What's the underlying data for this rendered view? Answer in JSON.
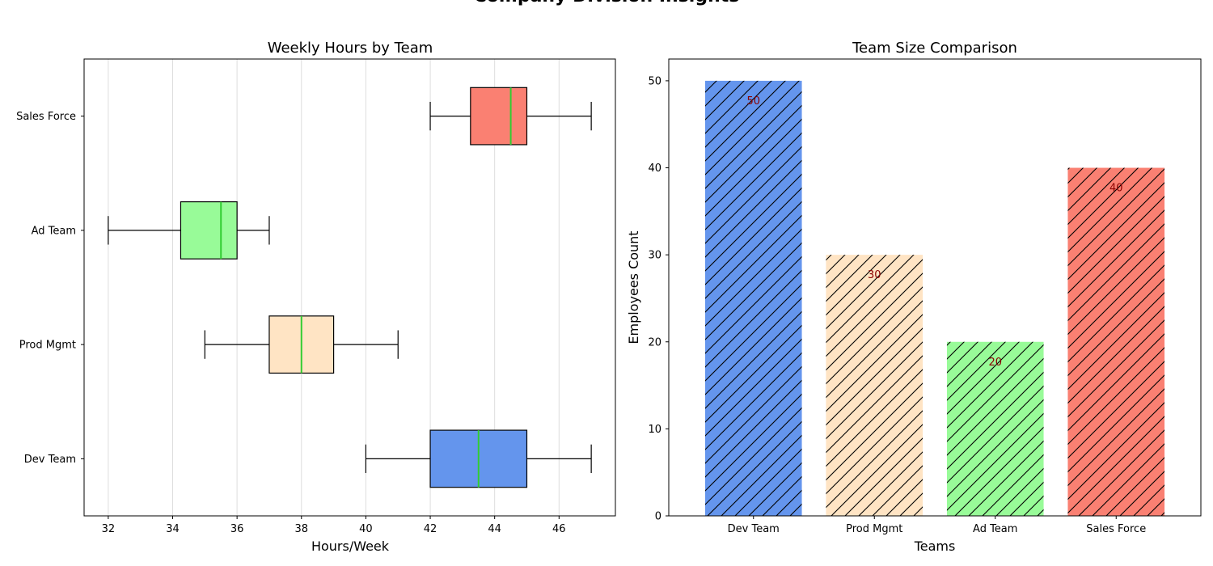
{
  "figure": {
    "title": "Company Division Insights"
  },
  "chart_data": [
    {
      "type": "box",
      "title": "Weekly Hours by Team",
      "xlabel": "Hours/Week",
      "ylabel": "",
      "orientation": "horizontal",
      "xlim": [
        31.25,
        47.75
      ],
      "xticks": [
        32,
        34,
        36,
        38,
        40,
        42,
        44,
        46
      ],
      "grid": "vertical",
      "categories": [
        "Dev Team",
        "Prod Mgmt",
        "Ad Team",
        "Sales Force"
      ],
      "boxes": [
        {
          "label": "Dev Team",
          "whisker_low": 40,
          "q1": 42,
          "median": 43.5,
          "q3": 45,
          "whisker_high": 47,
          "color": "#6495ed"
        },
        {
          "label": "Prod Mgmt",
          "whisker_low": 35,
          "q1": 37,
          "median": 38,
          "q3": 39,
          "whisker_high": 41,
          "color": "#ffe4c4"
        },
        {
          "label": "Ad Team",
          "whisker_low": 32,
          "q1": 34.25,
          "median": 35.5,
          "q3": 36,
          "whisker_high": 37,
          "color": "#98fb98"
        },
        {
          "label": "Sales Force",
          "whisker_low": 42,
          "q1": 43.25,
          "median": 44.5,
          "q3": 45,
          "whisker_high": 47,
          "color": "#fa8072"
        }
      ],
      "median_color": "#32cd32"
    },
    {
      "type": "bar",
      "title": "Team Size Comparison",
      "xlabel": "Teams",
      "ylabel": "Employees Count",
      "ylim": [
        0,
        52.5
      ],
      "yticks": [
        0,
        10,
        20,
        30,
        40,
        50
      ],
      "categories": [
        "Dev Team",
        "Prod Mgmt",
        "Ad Team",
        "Sales Force"
      ],
      "values": [
        50,
        30,
        20,
        40
      ],
      "colors": [
        "#6495ed",
        "#ffe4c4",
        "#98fb98",
        "#fa8072"
      ],
      "hatch": "diagonal",
      "data_labels": [
        "50",
        "30",
        "20",
        "40"
      ]
    }
  ]
}
